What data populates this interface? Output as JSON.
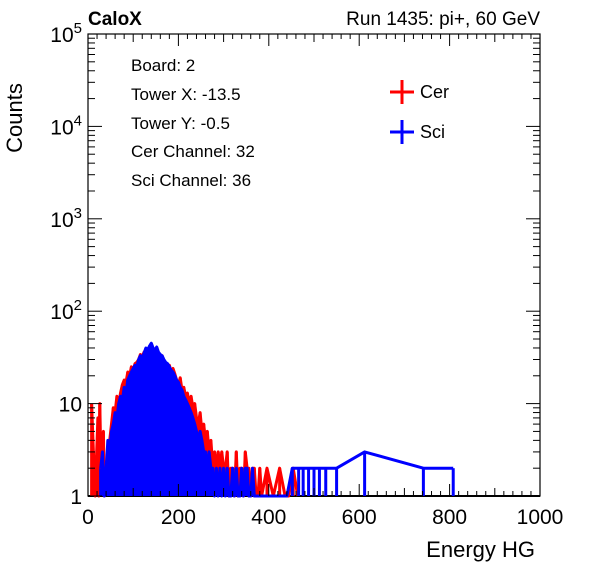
{
  "header": {
    "left_title": "CaloX",
    "right_title": "Run 1435: pi+, 60 GeV"
  },
  "info_box": {
    "lines": [
      "Board: 2",
      "Tower X: -13.5",
      "Tower Y: -0.5",
      "Cer Channel: 32",
      "Sci Channel: 36"
    ]
  },
  "chart_data": {
    "type": "histogram",
    "xlabel": "Energy HG",
    "ylabel": "Counts",
    "xlim": [
      0,
      1000
    ],
    "ylim": [
      1,
      100000
    ],
    "log_y": true,
    "grid": false,
    "legend_position": "top-right",
    "x_ticks": [
      "0",
      "200",
      "400",
      "600",
      "800",
      "1000"
    ],
    "y_ticks": [
      {
        "value": 1,
        "label": "1"
      },
      {
        "value": 10,
        "label": "10"
      },
      {
        "value": 100,
        "base": "10",
        "exp": "2"
      },
      {
        "value": 1000,
        "base": "10",
        "exp": "3"
      },
      {
        "value": 10000,
        "base": "10",
        "exp": "4"
      },
      {
        "value": 100000,
        "base": "10",
        "exp": "5"
      }
    ],
    "series": [
      {
        "name": "Cer",
        "color": "#ff0000",
        "points": [
          [
            8,
            10
          ],
          [
            12,
            3
          ],
          [
            16,
            1
          ],
          [
            18,
            2
          ],
          [
            22,
            7
          ],
          [
            24,
            1
          ],
          [
            26,
            10
          ],
          [
            28,
            3
          ],
          [
            34,
            5
          ],
          [
            36,
            1
          ],
          [
            40,
            2
          ],
          [
            44,
            3
          ],
          [
            48,
            4
          ],
          [
            52,
            6
          ],
          [
            56,
            9
          ],
          [
            60,
            8
          ],
          [
            64,
            12
          ],
          [
            68,
            10
          ],
          [
            72,
            13
          ],
          [
            76,
            16
          ],
          [
            80,
            18
          ],
          [
            84,
            17
          ],
          [
            88,
            22
          ],
          [
            92,
            20
          ],
          [
            96,
            25
          ],
          [
            100,
            23
          ],
          [
            104,
            27
          ],
          [
            108,
            28
          ],
          [
            112,
            30
          ],
          [
            116,
            34
          ],
          [
            120,
            32
          ],
          [
            124,
            36
          ],
          [
            128,
            38
          ],
          [
            132,
            35
          ],
          [
            136,
            40
          ],
          [
            140,
            38
          ],
          [
            144,
            36
          ],
          [
            148,
            34
          ],
          [
            152,
            37
          ],
          [
            156,
            32
          ],
          [
            160,
            30
          ],
          [
            164,
            33
          ],
          [
            168,
            28
          ],
          [
            172,
            27
          ],
          [
            176,
            25
          ],
          [
            180,
            26
          ],
          [
            184,
            22
          ],
          [
            188,
            24
          ],
          [
            192,
            21
          ],
          [
            196,
            18
          ],
          [
            200,
            16
          ],
          [
            204,
            19
          ],
          [
            208,
            14
          ],
          [
            212,
            15
          ],
          [
            216,
            12
          ],
          [
            220,
            13
          ],
          [
            224,
            10
          ],
          [
            228,
            12
          ],
          [
            232,
            9
          ],
          [
            236,
            10
          ],
          [
            240,
            7
          ],
          [
            244,
            6
          ],
          [
            248,
            8
          ],
          [
            252,
            5
          ],
          [
            256,
            6
          ],
          [
            260,
            4
          ],
          [
            264,
            5
          ],
          [
            268,
            3
          ],
          [
            272,
            4
          ],
          [
            276,
            2
          ],
          [
            280,
            3
          ],
          [
            284,
            2
          ],
          [
            288,
            3
          ],
          [
            292,
            2
          ],
          [
            296,
            3
          ],
          [
            300,
            2
          ],
          [
            304,
            2
          ],
          [
            308,
            3
          ],
          [
            312,
            1
          ],
          [
            316,
            2
          ],
          [
            320,
            2
          ],
          [
            324,
            1
          ],
          [
            328,
            3
          ],
          [
            332,
            1
          ],
          [
            336,
            2
          ],
          [
            340,
            2
          ],
          [
            344,
            1
          ],
          [
            348,
            3
          ],
          [
            352,
            2
          ],
          [
            356,
            2
          ],
          [
            360,
            1
          ],
          [
            364,
            2
          ],
          [
            368,
            2
          ],
          [
            372,
            1
          ],
          [
            376,
            1
          ],
          [
            380,
            2
          ],
          [
            384,
            1
          ],
          [
            396,
            2
          ],
          [
            410,
            1
          ],
          [
            424,
            2
          ],
          [
            436,
            1
          ],
          [
            444,
            1
          ],
          [
            454,
            2
          ],
          [
            464,
            1
          ]
        ]
      },
      {
        "name": "Sci",
        "color": "#0000ff",
        "points": [
          [
            28,
            2
          ],
          [
            32,
            3
          ],
          [
            36,
            1
          ],
          [
            40,
            2
          ],
          [
            44,
            4
          ],
          [
            48,
            3
          ],
          [
            52,
            5
          ],
          [
            56,
            6
          ],
          [
            60,
            8
          ],
          [
            64,
            7
          ],
          [
            68,
            10
          ],
          [
            72,
            12
          ],
          [
            76,
            11
          ],
          [
            80,
            15
          ],
          [
            84,
            13
          ],
          [
            88,
            18
          ],
          [
            92,
            20
          ],
          [
            96,
            22
          ],
          [
            100,
            24
          ],
          [
            104,
            26
          ],
          [
            108,
            25
          ],
          [
            112,
            30
          ],
          [
            116,
            33
          ],
          [
            120,
            31
          ],
          [
            124,
            35
          ],
          [
            128,
            40
          ],
          [
            132,
            38
          ],
          [
            136,
            42
          ],
          [
            140,
            45
          ],
          [
            144,
            40
          ],
          [
            148,
            38
          ],
          [
            152,
            41
          ],
          [
            156,
            36
          ],
          [
            160,
            34
          ],
          [
            164,
            33
          ],
          [
            168,
            30
          ],
          [
            172,
            28
          ],
          [
            176,
            27
          ],
          [
            180,
            25
          ],
          [
            184,
            23
          ],
          [
            188,
            22
          ],
          [
            192,
            20
          ],
          [
            196,
            18
          ],
          [
            200,
            17
          ],
          [
            204,
            15
          ],
          [
            208,
            14
          ],
          [
            212,
            12
          ],
          [
            216,
            11
          ],
          [
            220,
            10
          ],
          [
            224,
            9
          ],
          [
            228,
            8
          ],
          [
            232,
            7
          ],
          [
            236,
            6
          ],
          [
            240,
            5
          ],
          [
            244,
            4
          ],
          [
            248,
            5
          ],
          [
            252,
            4
          ],
          [
            256,
            3
          ],
          [
            260,
            3
          ],
          [
            264,
            2
          ],
          [
            268,
            3
          ],
          [
            272,
            2
          ],
          [
            276,
            2
          ],
          [
            280,
            1
          ],
          [
            284,
            2
          ],
          [
            288,
            1
          ],
          [
            292,
            2
          ],
          [
            296,
            1
          ],
          [
            300,
            2
          ],
          [
            304,
            1
          ],
          [
            308,
            2
          ],
          [
            312,
            1
          ],
          [
            316,
            1
          ],
          [
            320,
            2
          ],
          [
            324,
            1
          ],
          [
            328,
            2
          ],
          [
            332,
            1
          ],
          [
            336,
            1
          ],
          [
            340,
            2
          ],
          [
            344,
            1
          ],
          [
            348,
            2
          ],
          [
            352,
            2
          ],
          [
            356,
            1
          ],
          [
            360,
            1
          ],
          [
            364,
            2
          ],
          [
            368,
            1
          ],
          [
            372,
            1
          ],
          [
            376,
            1
          ],
          [
            380,
            1
          ],
          [
            384,
            1
          ],
          [
            388,
            1
          ],
          [
            392,
            1
          ],
          [
            396,
            1
          ],
          [
            408,
            1
          ],
          [
            418,
            1
          ],
          [
            428,
            1
          ],
          [
            440,
            1
          ],
          [
            452,
            2
          ],
          [
            466,
            2
          ],
          [
            476,
            2
          ],
          [
            488,
            2
          ],
          [
            500,
            2
          ],
          [
            512,
            2
          ],
          [
            526,
            2
          ],
          [
            550,
            2
          ],
          [
            612,
            3
          ],
          [
            742,
            2
          ],
          [
            808,
            2
          ]
        ]
      }
    ]
  }
}
